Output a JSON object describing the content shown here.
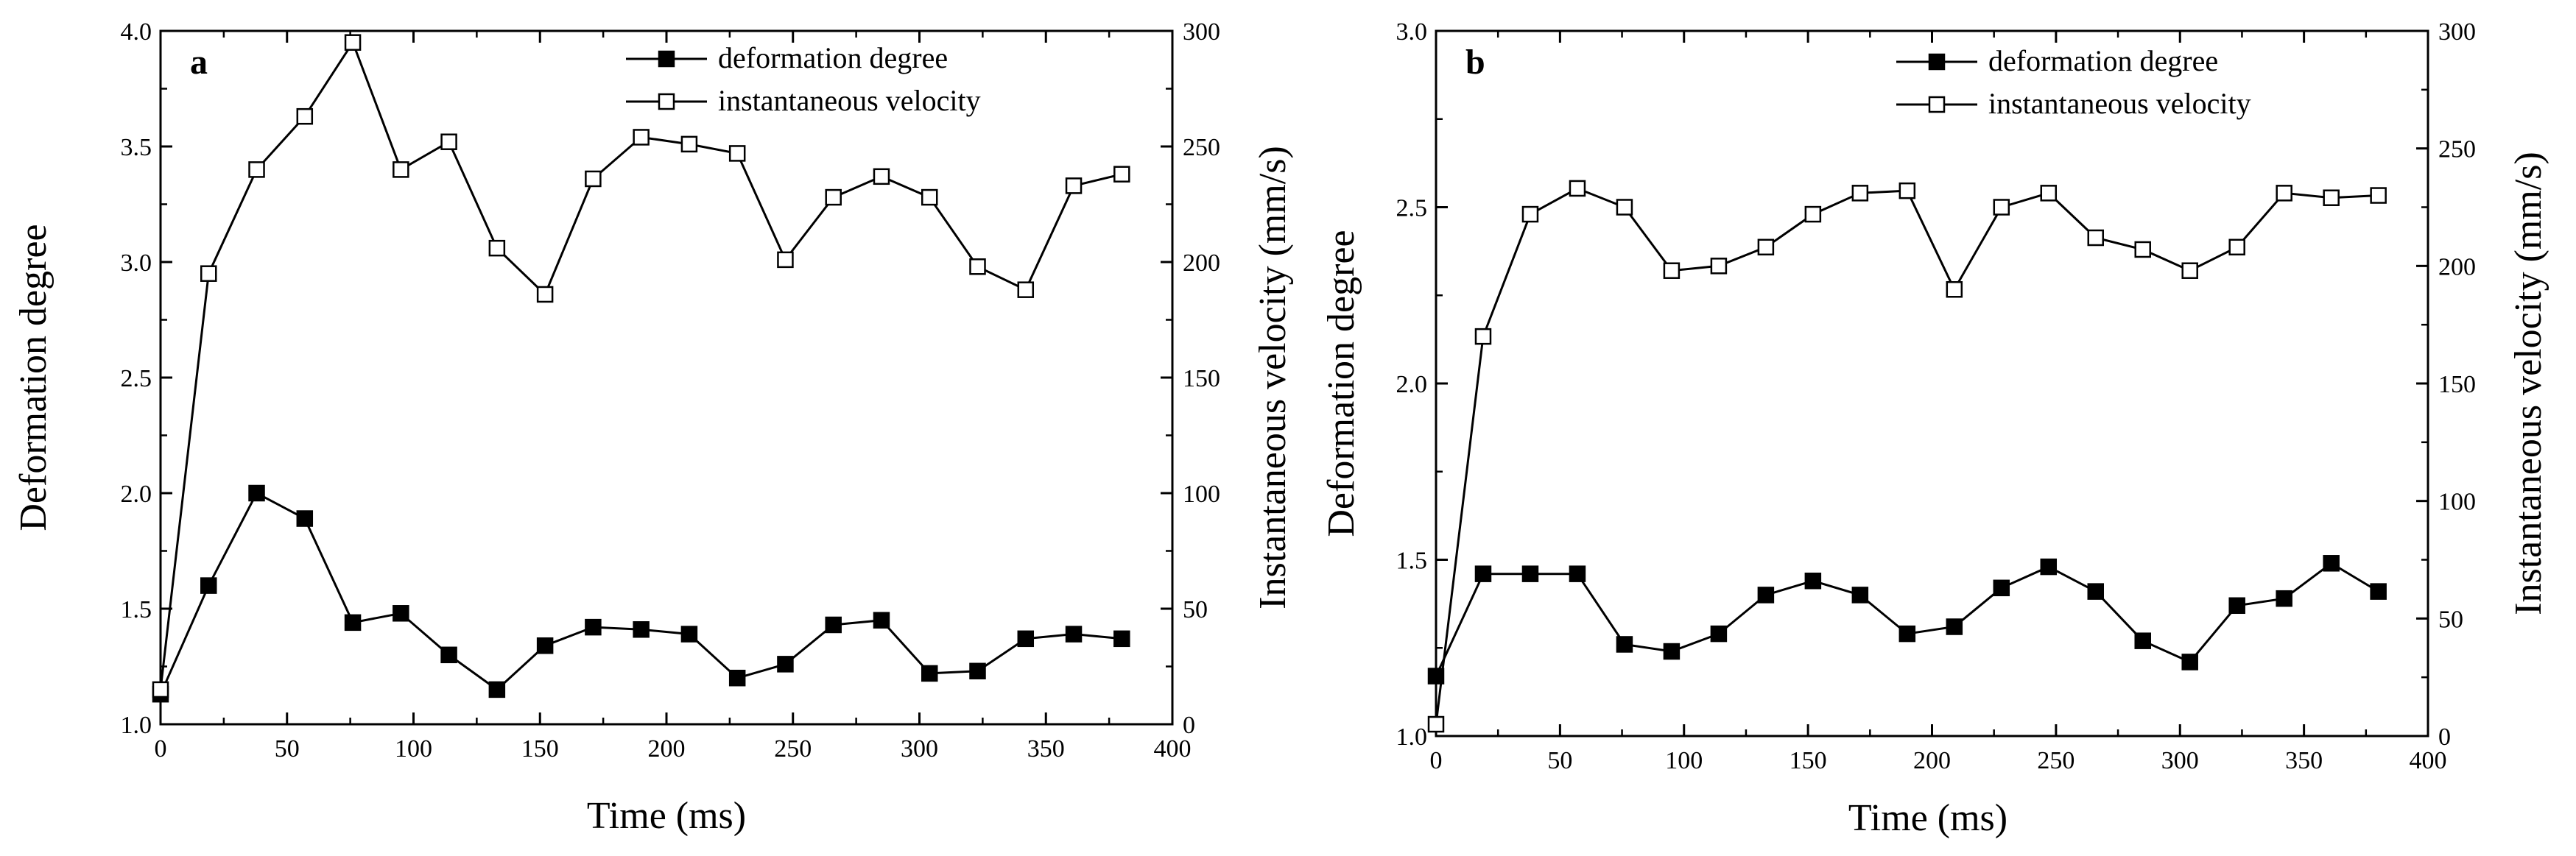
{
  "chart_data": [
    {
      "type": "line",
      "panel_label": "a",
      "xlabel": "Time  (ms)",
      "ylabel_left": "Deformation degree",
      "ylabel_right": "Instantaneous velocity  (mm/s)",
      "xlim": [
        0,
        400
      ],
      "ylim_left": [
        1.0,
        4.0
      ],
      "ylim_right": [
        0,
        300
      ],
      "x_ticks": [
        0,
        50,
        100,
        150,
        200,
        250,
        300,
        350,
        400
      ],
      "y_left_ticks": [
        "1.0",
        "1.5",
        "2.0",
        "2.5",
        "3.0",
        "3.5",
        "4.0"
      ],
      "y_right_ticks": [
        "0",
        "50",
        "100",
        "150",
        "200",
        "250",
        "300"
      ],
      "series": [
        {
          "name": "deformation degree",
          "axis": "left",
          "marker": "filled-square",
          "x": [
            0,
            19,
            38,
            57,
            76,
            95,
            114,
            133,
            152,
            171,
            190,
            209,
            228,
            247,
            266,
            285,
            304,
            323,
            342,
            361,
            380
          ],
          "values": [
            1.13,
            1.6,
            2.0,
            1.89,
            1.44,
            1.48,
            1.3,
            1.15,
            1.34,
            1.42,
            1.41,
            1.39,
            1.2,
            1.26,
            1.43,
            1.45,
            1.22,
            1.23,
            1.37,
            1.39,
            1.37
          ]
        },
        {
          "name": "instantaneous velocity",
          "axis": "right",
          "marker": "open-square",
          "x": [
            0,
            19,
            38,
            57,
            76,
            95,
            114,
            133,
            152,
            171,
            190,
            209,
            228,
            247,
            266,
            285,
            304,
            323,
            342,
            361,
            380
          ],
          "values": [
            15,
            195,
            240,
            263,
            295,
            240,
            252,
            206,
            186,
            236,
            254,
            251,
            247,
            201,
            228,
            237,
            228,
            198,
            188,
            233,
            238
          ]
        }
      ]
    },
    {
      "type": "line",
      "panel_label": "b",
      "xlabel": "Time (ms)",
      "ylabel_left": "Deformation degree",
      "ylabel_right": "Instantaneous velocity  (mm/s)",
      "xlim": [
        0,
        400
      ],
      "ylim_left": [
        1.0,
        3.0
      ],
      "ylim_right": [
        0,
        300
      ],
      "x_ticks": [
        0,
        50,
        100,
        150,
        200,
        250,
        300,
        350,
        400
      ],
      "y_left_ticks": [
        "1.0",
        "1.5",
        "2.0",
        "2.5",
        "3.0"
      ],
      "y_right_ticks": [
        "0",
        "50",
        "100",
        "150",
        "200",
        "250",
        "300"
      ],
      "series": [
        {
          "name": "deformation degree",
          "axis": "left",
          "marker": "filled-square",
          "x": [
            0,
            19,
            38,
            57,
            76,
            95,
            114,
            133,
            152,
            171,
            190,
            209,
            228,
            247,
            266,
            285,
            304,
            323,
            342,
            361,
            380
          ],
          "values": [
            1.17,
            1.46,
            1.46,
            1.46,
            1.26,
            1.24,
            1.29,
            1.4,
            1.44,
            1.4,
            1.29,
            1.31,
            1.42,
            1.48,
            1.41,
            1.27,
            1.21,
            1.37,
            1.39,
            1.49,
            1.41
          ]
        },
        {
          "name": "instantaneous velocity",
          "axis": "right",
          "marker": "open-square",
          "x": [
            0,
            19,
            38,
            57,
            76,
            95,
            114,
            133,
            152,
            171,
            190,
            209,
            228,
            247,
            266,
            285,
            304,
            323,
            342,
            361,
            380
          ],
          "values": [
            5,
            170,
            222,
            233,
            225,
            198,
            200,
            208,
            222,
            231,
            232,
            190,
            225,
            231,
            212,
            207,
            198,
            208,
            231,
            229,
            230
          ]
        }
      ]
    }
  ]
}
